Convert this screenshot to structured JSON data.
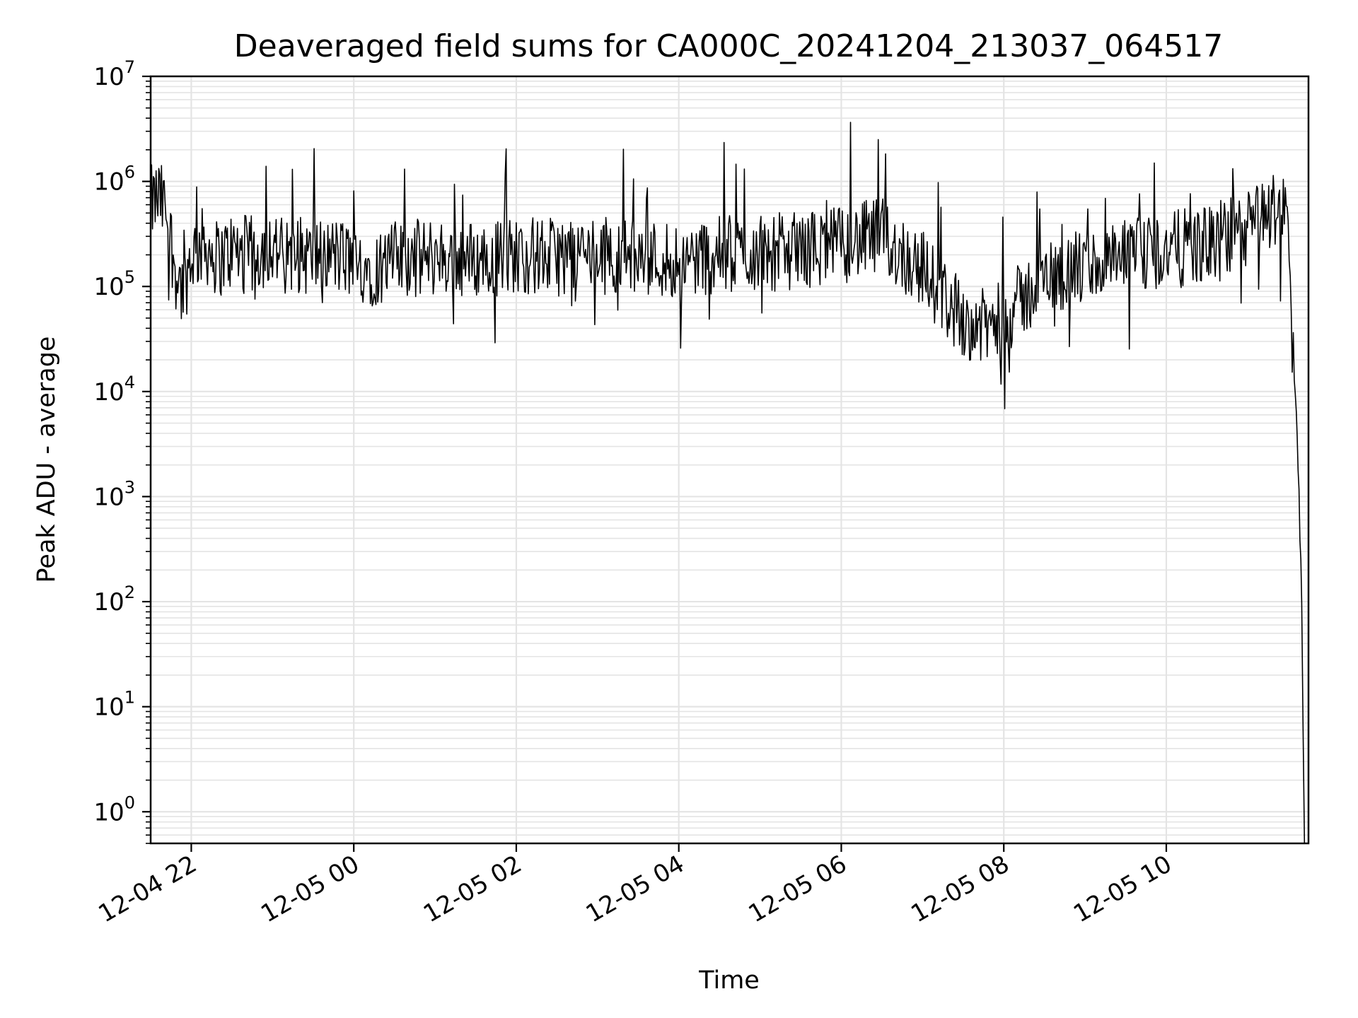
{
  "chart_data": {
    "type": "line",
    "title": "Deaveraged field sums for CA000C_20241204_213037_064517",
    "xlabel": "Time",
    "ylabel": "Peak ADU - average",
    "x_ticks": [
      "12-04 22",
      "12-05 00",
      "12-05 02",
      "12-05 04",
      "12-05 06",
      "12-05 08",
      "12-05 10"
    ],
    "y_ticks": [
      {
        "base": "10",
        "exp": "0"
      },
      {
        "base": "10",
        "exp": "1"
      },
      {
        "base": "10",
        "exp": "2"
      },
      {
        "base": "10",
        "exp": "3"
      },
      {
        "base": "10",
        "exp": "4"
      },
      {
        "base": "10",
        "exp": "5"
      },
      {
        "base": "10",
        "exp": "6"
      },
      {
        "base": "10",
        "exp": "7"
      }
    ],
    "x_range": [
      "2024-12-04 21:30",
      "2024-12-05 11:45"
    ],
    "y_scale": "log",
    "ylim": [
      0.5,
      10000000
    ],
    "grid": "major and minor",
    "line_color": "#000000",
    "series": [
      {
        "x": [
          "2024-12-04 21:30",
          "2024-12-04 21:36",
          "2024-12-04 21:42",
          "2024-12-04 21:48",
          "2024-12-04 21:54",
          "2024-12-04 22:00",
          "2024-12-04 22:10",
          "2024-12-04 22:20",
          "2024-12-04 22:30",
          "2024-12-04 22:45",
          "2024-12-04 23:00",
          "2024-12-04 23:10",
          "2024-12-04 23:20",
          "2024-12-04 23:30",
          "2024-12-04 23:45",
          "2024-12-05 00:00",
          "2024-12-05 00:15",
          "2024-12-05 00:30",
          "2024-12-05 01:00",
          "2024-12-05 01:30",
          "2024-12-05 02:00",
          "2024-12-05 02:30",
          "2024-12-05 02:45",
          "2024-12-05 03:00",
          "2024-12-05 03:30",
          "2024-12-05 04:00",
          "2024-12-05 04:30",
          "2024-12-05 05:00",
          "2024-12-05 05:30",
          "2024-12-05 06:00",
          "2024-12-05 06:30",
          "2024-12-05 06:45",
          "2024-12-05 07:00",
          "2024-12-05 07:15",
          "2024-12-05 07:30",
          "2024-12-05 07:45",
          "2024-12-05 08:00",
          "2024-12-05 08:30",
          "2024-12-05 09:00",
          "2024-12-05 09:30",
          "2024-12-05 10:00",
          "2024-12-05 10:30",
          "2024-12-05 11:00",
          "2024-12-05 11:15",
          "2024-12-05 11:25",
          "2024-12-05 11:30",
          "2024-12-05 11:33",
          "2024-12-05 11:36",
          "2024-12-05 11:38",
          "2024-12-05 11:40",
          "2024-12-05 11:41",
          "2024-12-05 11:42"
        ],
        "values": [
          600000,
          700000,
          500000,
          150000,
          90000,
          200000,
          250000,
          180000,
          220000,
          200000,
          250000,
          180000,
          200000,
          190000,
          200000,
          170000,
          150000,
          180000,
          190000,
          180000,
          200000,
          190000,
          210000,
          200000,
          190000,
          180000,
          200000,
          210000,
          220000,
          250000,
          300000,
          200000,
          150000,
          80000,
          50000,
          40000,
          50000,
          120000,
          150000,
          180000,
          220000,
          250000,
          350000,
          500000,
          600000,
          400000,
          30000,
          8000,
          1000,
          100,
          6,
          0.5
        ]
      }
    ]
  }
}
